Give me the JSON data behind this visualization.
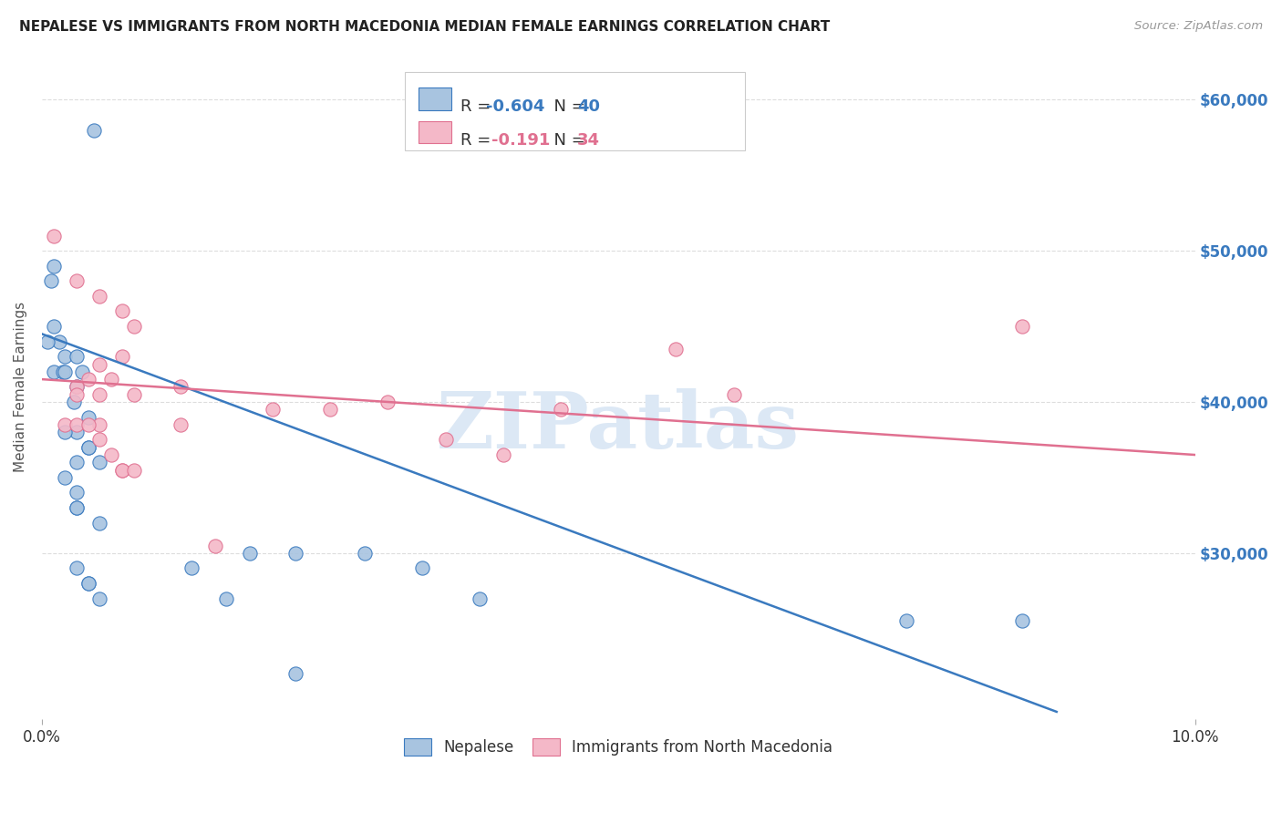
{
  "title": "NEPALESE VS IMMIGRANTS FROM NORTH MACEDONIA MEDIAN FEMALE EARNINGS CORRELATION CHART",
  "source": "Source: ZipAtlas.com",
  "ylabel": "Median Female Earnings",
  "xlim": [
    0.0,
    0.1
  ],
  "ylim": [
    19000,
    63000
  ],
  "blue_color": "#a8c4e0",
  "blue_line_color": "#3a7abf",
  "pink_color": "#f4b8c8",
  "pink_line_color": "#e07090",
  "blue_points_x": [
    0.0008,
    0.0045,
    0.001,
    0.0015,
    0.002,
    0.001,
    0.0018,
    0.003,
    0.0035,
    0.002,
    0.003,
    0.0028,
    0.004,
    0.003,
    0.004,
    0.005,
    0.002,
    0.003,
    0.004,
    0.003,
    0.003,
    0.005,
    0.004,
    0.003,
    0.004,
    0.005,
    0.013,
    0.018,
    0.022,
    0.028,
    0.033,
    0.038,
    0.075,
    0.001,
    0.002,
    0.003,
    0.016,
    0.022,
    0.085,
    0.0005
  ],
  "blue_points_y": [
    48000,
    58000,
    49000,
    44000,
    43000,
    42000,
    42000,
    43000,
    42000,
    42000,
    41000,
    40000,
    39000,
    38000,
    37000,
    36000,
    35000,
    36000,
    37000,
    34000,
    33000,
    32000,
    28000,
    29000,
    28000,
    27000,
    29000,
    30000,
    30000,
    30000,
    29000,
    27000,
    25500,
    45000,
    38000,
    33000,
    27000,
    22000,
    25500,
    44000
  ],
  "pink_points_x": [
    0.001,
    0.003,
    0.005,
    0.007,
    0.008,
    0.007,
    0.005,
    0.004,
    0.006,
    0.003,
    0.003,
    0.005,
    0.008,
    0.012,
    0.012,
    0.015,
    0.02,
    0.025,
    0.03,
    0.035,
    0.04,
    0.045,
    0.005,
    0.007,
    0.055,
    0.06,
    0.085,
    0.002,
    0.003,
    0.004,
    0.005,
    0.006,
    0.007,
    0.008
  ],
  "pink_points_y": [
    51000,
    48000,
    47000,
    46000,
    45000,
    43000,
    42500,
    41500,
    41500,
    41000,
    40500,
    40500,
    40500,
    41000,
    38500,
    30500,
    39500,
    39500,
    40000,
    37500,
    36500,
    39500,
    38500,
    35500,
    43500,
    40500,
    45000,
    38500,
    38500,
    38500,
    37500,
    36500,
    35500,
    35500
  ],
  "blue_trend_x": [
    0.0,
    0.088
  ],
  "blue_trend_y": [
    44500,
    19500
  ],
  "pink_trend_x": [
    0.0,
    0.1
  ],
  "pink_trend_y": [
    41500,
    36500
  ],
  "ytick_vals": [
    30000,
    40000,
    50000,
    60000
  ],
  "ytick_labels": [
    "$30,000",
    "$40,000",
    "$50,000",
    "$60,000"
  ],
  "watermark_text": "ZIPatlas",
  "background_color": "#ffffff",
  "grid_color": "#dddddd"
}
